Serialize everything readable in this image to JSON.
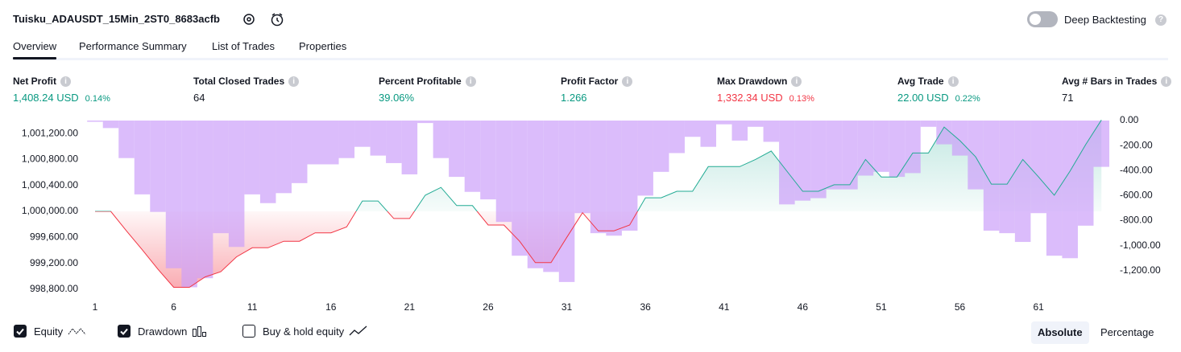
{
  "header": {
    "title": "Tuisku_ADAUSDT_15Min_2ST0_8683acfb",
    "toggle_label": "Deep Backtesting"
  },
  "tabs": [
    "Overview",
    "Performance Summary",
    "List of Trades",
    "Properties"
  ],
  "active_tab": 0,
  "metrics": [
    {
      "label": "Net Profit",
      "value": "1,408.24 USD",
      "percent": "0.14%",
      "tone": "positive"
    },
    {
      "label": "Total Closed Trades",
      "value": "64",
      "tone": "neutral"
    },
    {
      "label": "Percent Profitable",
      "value": "39.06%",
      "tone": "positive"
    },
    {
      "label": "Profit Factor",
      "value": "1.266",
      "tone": "positive"
    },
    {
      "label": "Max Drawdown",
      "value": "1,332.34 USD",
      "percent": "0.13%",
      "tone": "negative"
    },
    {
      "label": "Avg Trade",
      "value": "22.00 USD",
      "percent": "0.22%",
      "tone": "positive"
    },
    {
      "label": "Avg # Bars in Trades",
      "value": "71",
      "tone": "neutral"
    }
  ],
  "chart_data": {
    "type": "line",
    "x": [
      1,
      2,
      3,
      4,
      5,
      6,
      7,
      8,
      9,
      10,
      11,
      12,
      13,
      14,
      15,
      16,
      17,
      18,
      19,
      20,
      21,
      22,
      23,
      24,
      25,
      26,
      27,
      28,
      29,
      30,
      31,
      32,
      33,
      34,
      35,
      36,
      37,
      38,
      39,
      40,
      41,
      42,
      43,
      44,
      45,
      46,
      47,
      48,
      49,
      50,
      51,
      52,
      53,
      54,
      55,
      56,
      57,
      58,
      59,
      60,
      61,
      62,
      63,
      64,
      65
    ],
    "xlim": [
      0.5,
      65.5
    ],
    "xticks": [
      1,
      6,
      11,
      16,
      21,
      26,
      31,
      36,
      41,
      46,
      51,
      56,
      61
    ],
    "ylim": [
      998700,
      1001400
    ],
    "yticks": [
      {
        "value": 998800,
        "label": "998,800.00"
      },
      {
        "value": 999200,
        "label": "999,200.00"
      },
      {
        "value": 999600,
        "label": "999,600.00"
      },
      {
        "value": 1000000,
        "label": "1,000,000.00"
      },
      {
        "value": 1000400,
        "label": "1,000,400.00"
      },
      {
        "value": 1000800,
        "label": "1,000,800.00"
      },
      {
        "value": 1001200,
        "label": "1,001,200.00"
      }
    ],
    "y2lim": [
      -1400,
      0
    ],
    "y2ticks": [
      {
        "value": 0,
        "label": "0.00"
      },
      {
        "value": -200,
        "label": "-200.00"
      },
      {
        "value": -400,
        "label": "-400.00"
      },
      {
        "value": -600,
        "label": "-600.00"
      },
      {
        "value": -800,
        "label": "-800.00"
      },
      {
        "value": -1000,
        "label": "-1,000.00"
      },
      {
        "value": -1200,
        "label": "-1,200.00"
      }
    ],
    "series": [
      {
        "name": "Equity",
        "type": "line",
        "color": "#22ab94",
        "negative_color": "#f23645",
        "checked": true,
        "values": [
          1000000,
          1000000,
          999700,
          999410,
          999110,
          998830,
          998830,
          998990,
          999070,
          999300,
          999440,
          999440,
          999540,
          999540,
          999670,
          999670,
          999760,
          1000160,
          1000160,
          999890,
          999890,
          1000250,
          1000370,
          1000090,
          1000090,
          999790,
          999790,
          999540,
          999210,
          999210,
          999600,
          999980,
          999700,
          999700,
          999790,
          1000210,
          1000210,
          1000310,
          1000310,
          1000690,
          1000690,
          1000690,
          1000800,
          1000930,
          1000620,
          1000310,
          1000310,
          1000410,
          1000410,
          1000800,
          1000530,
          1000530,
          1000900,
          1000900,
          1001300,
          1001090,
          1000840,
          1000420,
          1000420,
          1000800,
          1000530,
          1000250,
          1000620,
          1001030,
          1001408.24
        ]
      },
      {
        "name": "Drawdown",
        "type": "bar",
        "axis": "y2",
        "color": "#cc9ffa",
        "checked": true,
        "values": [
          -10,
          -60,
          -300,
          -590,
          -730,
          -1180,
          -1332.34,
          -1260,
          -900,
          -1010,
          -590,
          -660,
          -580,
          -500,
          -350,
          -350,
          -300,
          -210,
          -280,
          -340,
          -430,
          -20,
          -300,
          -450,
          -570,
          -630,
          -810,
          -1080,
          -1180,
          -1210,
          -1290,
          -740,
          -900,
          -920,
          -880,
          -600,
          -410,
          -260,
          -130,
          -210,
          -30,
          -160,
          -50,
          -170,
          -670,
          -640,
          -620,
          -550,
          -550,
          -440,
          -410,
          -450,
          -420,
          -50,
          -190,
          -280,
          -550,
          -880,
          -900,
          -970,
          -740,
          -1080,
          -1100,
          -840,
          -370
        ]
      }
    ]
  },
  "legend_extra": [
    {
      "name": "Buy & hold equity",
      "checked": false
    }
  ],
  "scale_buttons": [
    "Absolute",
    "Percentage"
  ],
  "scale_active": 0
}
